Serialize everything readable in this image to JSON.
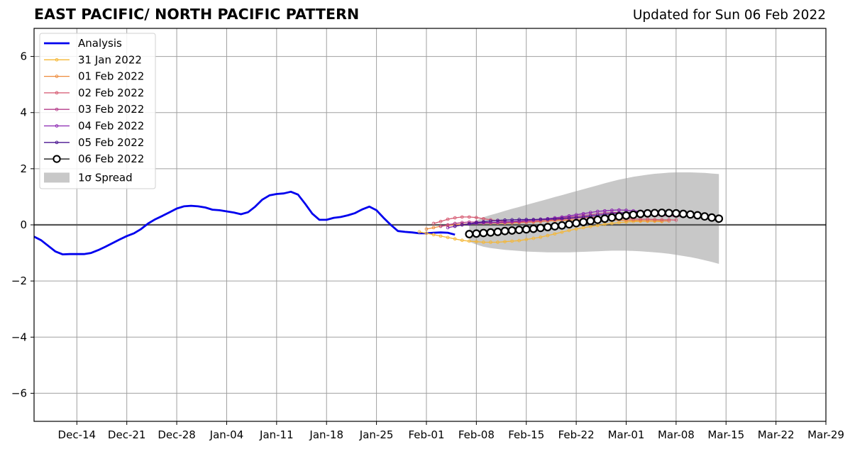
{
  "header": {
    "title": "EAST PACIFIC/ NORTH PACIFIC PATTERN",
    "subtitle": "Updated for Sun 06 Feb 2022"
  },
  "chart_data": {
    "type": "line",
    "title": "EAST PACIFIC/ NORTH PACIFIC PATTERN",
    "subtitle": "Updated for Sun 06 Feb 2022",
    "xlabel": "",
    "ylabel": "",
    "x_is_date": true,
    "xlim": [
      "2021-12-08",
      "2022-03-29"
    ],
    "ylim": [
      -7,
      7
    ],
    "x_ticks": [
      "2021-12-14",
      "2021-12-21",
      "2021-12-28",
      "2022-01-04",
      "2022-01-11",
      "2022-01-18",
      "2022-01-25",
      "2022-02-01",
      "2022-02-08",
      "2022-02-15",
      "2022-02-22",
      "2022-03-01",
      "2022-03-08",
      "2022-03-15",
      "2022-03-22",
      "2022-03-29"
    ],
    "x_tick_labels": [
      "Dec-14",
      "Dec-21",
      "Dec-28",
      "Jan-04",
      "Jan-11",
      "Jan-18",
      "Jan-25",
      "Feb-01",
      "Feb-08",
      "Feb-15",
      "Feb-22",
      "Mar-01",
      "Mar-08",
      "Mar-15",
      "Mar-22",
      "Mar-29"
    ],
    "y_ticks": [
      -6,
      -4,
      -2,
      0,
      2,
      4,
      6
    ],
    "y_tick_labels": [
      "−6",
      "−4",
      "−2",
      "0",
      "2",
      "4",
      "6"
    ],
    "grid": true,
    "zero_line": true,
    "legend_position": "top-left",
    "series": [
      {
        "name": "Analysis",
        "color": "#0000ee",
        "style": "thick-line",
        "start": "2021-12-08",
        "values": [
          -0.42,
          -0.55,
          -0.75,
          -0.95,
          -1.05,
          -1.04,
          -1.04,
          -1.04,
          -1.0,
          -0.9,
          -0.78,
          -0.65,
          -0.52,
          -0.4,
          -0.3,
          -0.15,
          0.05,
          0.2,
          0.32,
          0.45,
          0.58,
          0.66,
          0.68,
          0.66,
          0.62,
          0.54,
          0.52,
          0.48,
          0.44,
          0.38,
          0.45,
          0.65,
          0.9,
          1.05,
          1.1,
          1.12,
          1.18,
          1.08,
          0.75,
          0.4,
          0.18,
          0.18,
          0.25,
          0.28,
          0.34,
          0.42,
          0.55,
          0.65,
          0.52,
          0.25,
          0.0,
          -0.22,
          -0.25,
          -0.27,
          -0.3,
          -0.3,
          -0.28,
          -0.27,
          -0.28,
          -0.35
        ]
      },
      {
        "name": "31 Jan 2022",
        "color": "#f5b735",
        "style": "small-markers",
        "start": "2022-01-31",
        "values": [
          -0.25,
          -0.3,
          -0.35,
          -0.4,
          -0.45,
          -0.5,
          -0.55,
          -0.58,
          -0.6,
          -0.62,
          -0.62,
          -0.62,
          -0.6,
          -0.58,
          -0.56,
          -0.52,
          -0.48,
          -0.44,
          -0.38,
          -0.32,
          -0.26,
          -0.2,
          -0.15,
          -0.1,
          -0.06,
          -0.02,
          0.02,
          0.05,
          0.08,
          0.1,
          0.12,
          0.13,
          0.13,
          0.13,
          0.12
        ]
      },
      {
        "name": "01 Feb 2022",
        "color": "#ee8a3a",
        "style": "small-markers",
        "start": "2022-02-01",
        "values": [
          -0.15,
          -0.1,
          -0.05,
          -0.02,
          0.0,
          0.02,
          0.04,
          0.05,
          0.06,
          0.06,
          0.06,
          0.06,
          0.07,
          0.08,
          0.09,
          0.1,
          0.12,
          0.14,
          0.15,
          0.16,
          0.17,
          0.18,
          0.18,
          0.18,
          0.18,
          0.18,
          0.18,
          0.17,
          0.16,
          0.16,
          0.15,
          0.15,
          0.15,
          0.14,
          0.14
        ]
      },
      {
        "name": "02 Feb 2022",
        "color": "#d5566e",
        "style": "small-markers",
        "start": "2022-02-02",
        "values": [
          0.05,
          0.12,
          0.2,
          0.25,
          0.28,
          0.28,
          0.26,
          0.22,
          0.18,
          0.15,
          0.12,
          0.1,
          0.1,
          0.1,
          0.12,
          0.14,
          0.16,
          0.18,
          0.2,
          0.22,
          0.24,
          0.26,
          0.27,
          0.27,
          0.26,
          0.25,
          0.24,
          0.22,
          0.21,
          0.2,
          0.2,
          0.19,
          0.18,
          0.18,
          0.17
        ]
      },
      {
        "name": "03 Feb 2022",
        "color": "#b43c8a",
        "style": "small-markers",
        "start": "2022-02-03",
        "values": [
          -0.05,
          0.0,
          0.05,
          0.08,
          0.1,
          0.1,
          0.09,
          0.08,
          0.08,
          0.09,
          0.1,
          0.12,
          0.14,
          0.16,
          0.18,
          0.2,
          0.22,
          0.25,
          0.28,
          0.3,
          0.33,
          0.36,
          0.39,
          0.42,
          0.44,
          0.44,
          0.42,
          0.4,
          0.38,
          0.36,
          0.34,
          0.33,
          0.32,
          0.31,
          0.3
        ]
      },
      {
        "name": "04 Feb 2022",
        "color": "#8a24b0",
        "style": "small-markers",
        "start": "2022-02-04",
        "values": [
          -0.1,
          -0.05,
          0.0,
          0.03,
          0.05,
          0.07,
          0.08,
          0.09,
          0.1,
          0.12,
          0.14,
          0.16,
          0.18,
          0.2,
          0.22,
          0.25,
          0.28,
          0.32,
          0.36,
          0.4,
          0.44,
          0.48,
          0.5,
          0.52,
          0.53,
          0.52,
          0.5,
          0.48,
          0.46,
          0.44,
          0.42,
          0.41,
          0.4,
          0.39,
          0.38
        ]
      },
      {
        "name": "05 Feb 2022",
        "color": "#4a1590",
        "style": "small-markers",
        "start": "2022-02-05",
        "values": [
          -0.05,
          0.0,
          0.04,
          0.08,
          0.11,
          0.14,
          0.16,
          0.17,
          0.18,
          0.19,
          0.19,
          0.19,
          0.2,
          0.2,
          0.21,
          0.22,
          0.24,
          0.26,
          0.28,
          0.31,
          0.34,
          0.37,
          0.4,
          0.42,
          0.44,
          0.45,
          0.46,
          0.46,
          0.45,
          0.44,
          0.43,
          0.42,
          0.41,
          0.4,
          0.39
        ]
      },
      {
        "name": "06 Feb 2022",
        "color": "#000000",
        "style": "open-circles",
        "start": "2022-02-07",
        "values": [
          -0.33,
          -0.31,
          -0.29,
          -0.27,
          -0.25,
          -0.22,
          -0.2,
          -0.18,
          -0.16,
          -0.14,
          -0.11,
          -0.08,
          -0.05,
          -0.02,
          0.02,
          0.06,
          0.1,
          0.14,
          0.18,
          0.22,
          0.26,
          0.3,
          0.33,
          0.36,
          0.39,
          0.41,
          0.42,
          0.43,
          0.42,
          0.41,
          0.39,
          0.37,
          0.34,
          0.3,
          0.26,
          0.22
        ]
      }
    ],
    "spread": {
      "name": "1σ Spread",
      "color": "#c8c8c8",
      "start": "2022-02-07",
      "upper": [
        0.0,
        0.15,
        0.27,
        0.35,
        0.42,
        0.5,
        0.57,
        0.64,
        0.71,
        0.78,
        0.85,
        0.92,
        0.99,
        1.06,
        1.13,
        1.2,
        1.27,
        1.34,
        1.41,
        1.48,
        1.55,
        1.61,
        1.66,
        1.71,
        1.75,
        1.79,
        1.82,
        1.84,
        1.86,
        1.87,
        1.87,
        1.87,
        1.86,
        1.85,
        1.83,
        1.81
      ],
      "lower": [
        -0.6,
        -0.7,
        -0.78,
        -0.83,
        -0.86,
        -0.89,
        -0.91,
        -0.93,
        -0.95,
        -0.96,
        -0.97,
        -0.98,
        -0.98,
        -0.98,
        -0.98,
        -0.97,
        -0.96,
        -0.95,
        -0.94,
        -0.93,
        -0.92,
        -0.92,
        -0.92,
        -0.93,
        -0.94,
        -0.96,
        -0.98,
        -1.0,
        -1.03,
        -1.07,
        -1.11,
        -1.15,
        -1.2,
        -1.26,
        -1.32,
        -1.39
      ]
    }
  }
}
